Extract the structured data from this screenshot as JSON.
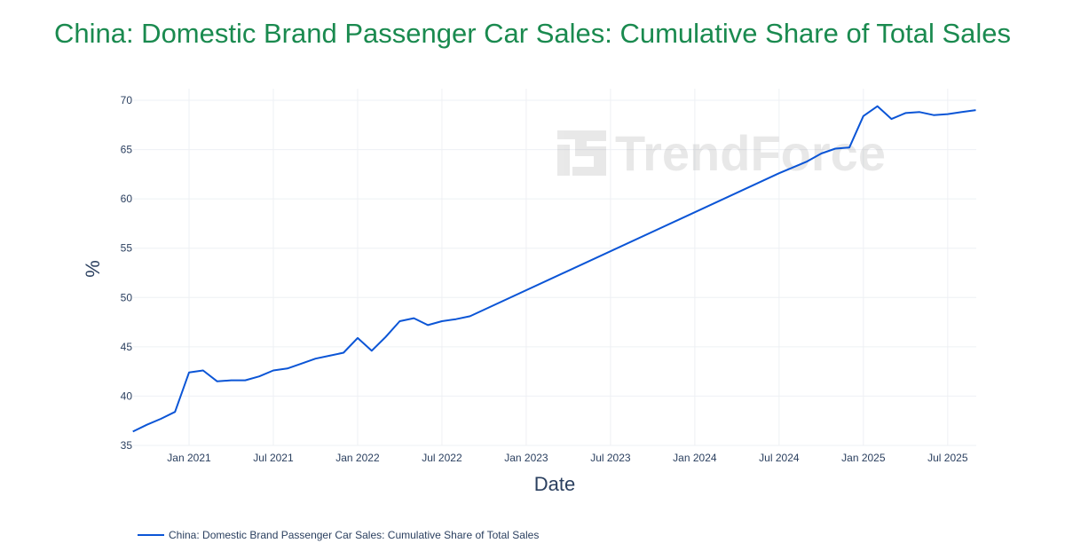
{
  "chart_data": {
    "type": "line",
    "title": "China: Domestic Brand Passenger Car Sales: Cumulative Share of Total Sales",
    "xlabel": "Date",
    "ylabel": "%",
    "ylim": [
      35,
      70
    ],
    "yticks": [
      35,
      40,
      45,
      50,
      55,
      60,
      65,
      70
    ],
    "xticks": [
      "Jan 2021",
      "Jul 2021",
      "Jan 2022",
      "Jul 2022",
      "Jan 2023",
      "Jul 2023",
      "Jan 2024",
      "Jul 2024",
      "Jan 2025",
      "Jul 2025"
    ],
    "grid": true,
    "legend_position": "bottom-left",
    "color": "#0b55d6",
    "watermark": "TrendForce",
    "series": [
      {
        "name": "China: Domestic Brand Passenger Car Sales: Cumulative Share of Total Sales",
        "x": [
          "2020-09",
          "2020-10",
          "2020-11",
          "2020-12",
          "2021-01",
          "2021-02",
          "2021-03",
          "2021-04",
          "2021-05",
          "2021-06",
          "2021-07",
          "2021-08",
          "2021-09",
          "2021-10",
          "2021-11",
          "2021-12",
          "2022-01",
          "2022-02",
          "2022-03",
          "2022-04",
          "2022-05",
          "2022-06",
          "2022-07",
          "2022-08",
          "2022-09",
          "2024-07",
          "2024-08",
          "2024-09",
          "2024-10",
          "2024-11",
          "2024-12",
          "2025-01",
          "2025-02",
          "2025-03",
          "2025-04",
          "2025-05",
          "2025-06",
          "2025-07",
          "2025-08",
          "2025-09"
        ],
        "values": [
          36.4,
          37.1,
          37.7,
          38.4,
          42.4,
          42.6,
          41.5,
          41.6,
          41.6,
          42.0,
          42.6,
          42.8,
          43.3,
          43.8,
          44.1,
          44.4,
          45.9,
          44.6,
          46.0,
          47.6,
          47.9,
          47.2,
          47.6,
          47.8,
          48.1,
          62.6,
          63.2,
          63.8,
          64.6,
          65.1,
          65.2,
          68.4,
          69.4,
          68.1,
          68.7,
          68.8,
          68.5,
          68.6,
          68.8,
          69.0
        ]
      }
    ]
  }
}
